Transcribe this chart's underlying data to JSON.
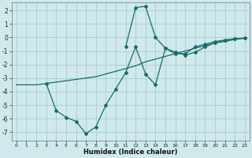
{
  "xlabel": "Humidex (Indice chaleur)",
  "background_color": "#cfe9ed",
  "grid_color": "#a8cdd1",
  "line_color": "#1a6b6b",
  "xlim": [
    -0.5,
    23.5
  ],
  "ylim": [
    -7.6,
    2.6
  ],
  "yticks": [
    -7,
    -6,
    -5,
    -4,
    -3,
    -2,
    -1,
    0,
    1,
    2
  ],
  "xticks": [
    0,
    1,
    2,
    3,
    4,
    5,
    6,
    7,
    8,
    9,
    10,
    11,
    12,
    13,
    14,
    15,
    16,
    17,
    18,
    19,
    20,
    21,
    22,
    23
  ],
  "line1_x": [
    0,
    1,
    2,
    3,
    4,
    5,
    6,
    7,
    8,
    9,
    10,
    11,
    12,
    13,
    14,
    15,
    16,
    17,
    18,
    19,
    20,
    21,
    22,
    23
  ],
  "line1_y": [
    -3.5,
    -3.5,
    -3.5,
    -3.4,
    -3.3,
    -3.2,
    -3.1,
    -3.0,
    -2.9,
    -2.7,
    -2.5,
    -2.3,
    -2.1,
    -1.8,
    -1.6,
    -1.4,
    -1.2,
    -1.0,
    -0.8,
    -0.6,
    -0.4,
    -0.3,
    -0.15,
    -0.05
  ],
  "line2_x": [
    3,
    4,
    5,
    6,
    7,
    8,
    9,
    10,
    11,
    12,
    13,
    14,
    15,
    16,
    17,
    18,
    19,
    20,
    21,
    22,
    23
  ],
  "line2_y": [
    -3.4,
    -5.4,
    -5.9,
    -6.2,
    -7.1,
    -6.6,
    -5.0,
    -3.8,
    -2.6,
    -0.7,
    -2.7,
    -3.5,
    -0.8,
    -1.1,
    -1.3,
    -1.1,
    -0.7,
    -0.4,
    -0.2,
    -0.1,
    -0.05
  ],
  "line3_x": [
    11,
    12,
    13,
    14,
    15,
    16,
    17,
    18,
    19,
    20,
    21,
    22,
    23
  ],
  "line3_y": [
    -0.7,
    2.2,
    2.3,
    0.0,
    -0.8,
    -1.2,
    -1.2,
    -0.7,
    -0.5,
    -0.3,
    -0.2,
    -0.1,
    -0.05
  ]
}
